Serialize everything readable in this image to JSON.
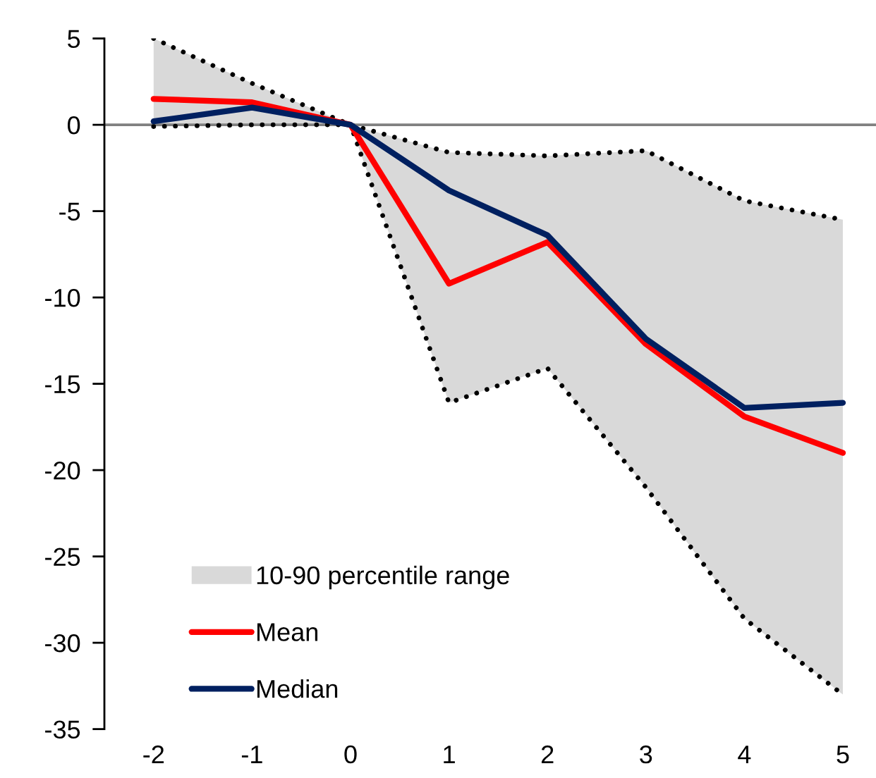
{
  "chart_data": {
    "type": "line",
    "categories": [
      "-2",
      "-1",
      "0",
      "1",
      "2",
      "3",
      "4",
      "5"
    ],
    "ylim": [
      -35,
      5
    ],
    "yticks": [
      -35,
      -30,
      -25,
      -20,
      -15,
      -10,
      -5,
      0,
      5
    ],
    "grid": false,
    "legend": "bottom left",
    "ref_lines": [
      {
        "axis": "y",
        "value": 0,
        "color": "#808080"
      }
    ],
    "series": [
      {
        "name": "10-90 percentile range",
        "type": "area",
        "color": "#d9d9d9",
        "values": [
          null,
          null,
          null,
          null,
          null,
          null,
          null,
          null
        ],
        "lower": [
          -0.1,
          0.0,
          0.0,
          -16.1,
          -14.1,
          -21.0,
          -28.6,
          -33.0
        ],
        "upper": [
          5.0,
          2.4,
          0.0,
          -1.6,
          -1.8,
          -1.5,
          -4.4,
          -5.5
        ]
      },
      {
        "type": "line",
        "color": "#000000",
        "line_style": "dotted",
        "values": [
          5.0,
          2.4,
          0.0,
          -1.6,
          -1.8,
          -1.5,
          -4.4,
          -5.5
        ]
      },
      {
        "type": "line",
        "color": "#000000",
        "line_style": "dotted",
        "values": [
          -0.1,
          0.0,
          0.0,
          -16.1,
          -14.1,
          -21.0,
          -28.6,
          -33.0
        ]
      },
      {
        "name": "Mean",
        "type": "line",
        "color": "#ff0000",
        "values": [
          1.5,
          1.3,
          0.0,
          -9.2,
          -6.8,
          -12.7,
          -16.9,
          -19.0
        ]
      },
      {
        "name": "Median",
        "type": "line",
        "color": "#002060",
        "values": [
          0.2,
          1.0,
          0.0,
          -3.8,
          -6.4,
          -12.4,
          -16.4,
          -16.1
        ]
      }
    ]
  }
}
